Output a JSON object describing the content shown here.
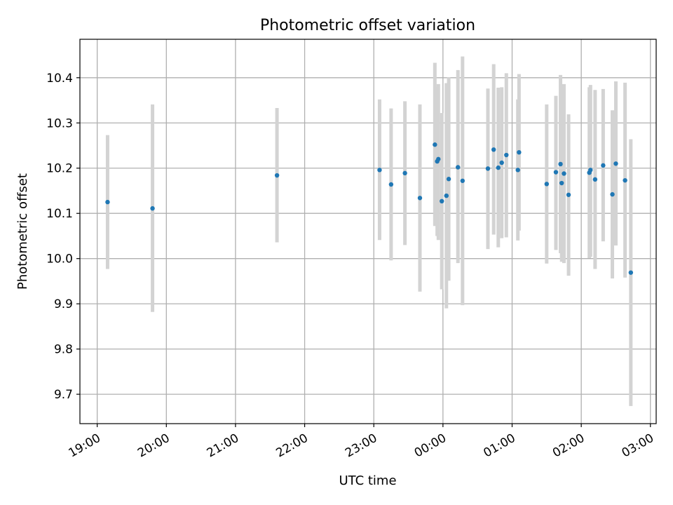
{
  "chart_data": {
    "type": "scatter",
    "title": "Photometric offset variation",
    "xlabel": "UTC time",
    "ylabel": "Photometric offset",
    "x_unit": "UTC (hours after 19:00 reference)",
    "xlim": [
      "18:45",
      "03:05"
    ],
    "ylim": [
      9.635,
      10.485
    ],
    "grid": true,
    "x_ticks": [
      "19:00",
      "20:00",
      "21:00",
      "22:00",
      "23:00",
      "00:00",
      "01:00",
      "02:00",
      "03:00"
    ],
    "y_ticks": [
      "9.7",
      "9.8",
      "9.9",
      "10.0",
      "10.1",
      "10.2",
      "10.3",
      "10.4"
    ],
    "colors": {
      "marker": "#1f77b4",
      "error_bar": "#d3d3d3",
      "grid": "#b0b0b0",
      "axes": "#000000"
    },
    "points": [
      {
        "x": "19:09",
        "y": 10.125,
        "lo": 9.977,
        "hi": 10.273
      },
      {
        "x": "19:48",
        "y": 10.111,
        "lo": 9.882,
        "hi": 10.341
      },
      {
        "x": "21:36",
        "y": 10.184,
        "lo": 10.036,
        "hi": 10.333
      },
      {
        "x": "23:05",
        "y": 10.196,
        "lo": 10.041,
        "hi": 10.352
      },
      {
        "x": "23:15",
        "y": 10.164,
        "lo": 9.996,
        "hi": 10.332
      },
      {
        "x": "23:27",
        "y": 10.189,
        "lo": 10.03,
        "hi": 10.348
      },
      {
        "x": "23:40",
        "y": 10.134,
        "lo": 9.927,
        "hi": 10.341
      },
      {
        "x": "23:53",
        "y": 10.252,
        "lo": 10.072,
        "hi": 10.433
      },
      {
        "x": "23:55",
        "y": 10.215,
        "lo": 10.05,
        "hi": 10.38
      },
      {
        "x": "23:56",
        "y": 10.22,
        "lo": 10.041,
        "hi": 10.386
      },
      {
        "x": "23:59",
        "y": 10.127,
        "lo": 9.932,
        "hi": 10.322
      },
      {
        "x": "00:03",
        "y": 10.139,
        "lo": 9.89,
        "hi": 10.388
      },
      {
        "x": "00:05",
        "y": 10.176,
        "lo": 9.951,
        "hi": 10.401
      },
      {
        "x": "00:13",
        "y": 10.202,
        "lo": 9.99,
        "hi": 10.417
      },
      {
        "x": "00:17",
        "y": 10.172,
        "lo": 9.897,
        "hi": 10.447
      },
      {
        "x": "00:39",
        "y": 10.199,
        "lo": 10.021,
        "hi": 10.376
      },
      {
        "x": "00:44",
        "y": 10.241,
        "lo": 10.053,
        "hi": 10.43
      },
      {
        "x": "00:48",
        "y": 10.201,
        "lo": 10.025,
        "hi": 10.378
      },
      {
        "x": "00:51",
        "y": 10.212,
        "lo": 10.045,
        "hi": 10.379
      },
      {
        "x": "00:55",
        "y": 10.229,
        "lo": 10.047,
        "hi": 10.41
      },
      {
        "x": "01:05",
        "y": 10.196,
        "lo": 10.04,
        "hi": 10.352
      },
      {
        "x": "01:06",
        "y": 10.235,
        "lo": 10.062,
        "hi": 10.408
      },
      {
        "x": "01:30",
        "y": 10.165,
        "lo": 9.989,
        "hi": 10.341
      },
      {
        "x": "01:38",
        "y": 10.191,
        "lo": 10.019,
        "hi": 10.36
      },
      {
        "x": "01:42",
        "y": 10.209,
        "lo": 10.012,
        "hi": 10.406
      },
      {
        "x": "01:43",
        "y": 10.167,
        "lo": 9.993,
        "hi": 10.342
      },
      {
        "x": "01:45",
        "y": 10.188,
        "lo": 9.99,
        "hi": 10.386
      },
      {
        "x": "01:49",
        "y": 10.141,
        "lo": 9.962,
        "hi": 10.319
      },
      {
        "x": "02:07",
        "y": 10.19,
        "lo": 10.001,
        "hi": 10.379
      },
      {
        "x": "02:08",
        "y": 10.196,
        "lo": 10.004,
        "hi": 10.384
      },
      {
        "x": "02:12",
        "y": 10.175,
        "lo": 9.977,
        "hi": 10.373
      },
      {
        "x": "02:19",
        "y": 10.206,
        "lo": 10.038,
        "hi": 10.375
      },
      {
        "x": "02:27",
        "y": 10.142,
        "lo": 9.956,
        "hi": 10.328
      },
      {
        "x": "02:30",
        "y": 10.21,
        "lo": 10.029,
        "hi": 10.392
      },
      {
        "x": "02:38",
        "y": 10.173,
        "lo": 9.958,
        "hi": 10.389
      },
      {
        "x": "02:43",
        "y": 9.969,
        "lo": 9.674,
        "hi": 10.264
      }
    ]
  }
}
